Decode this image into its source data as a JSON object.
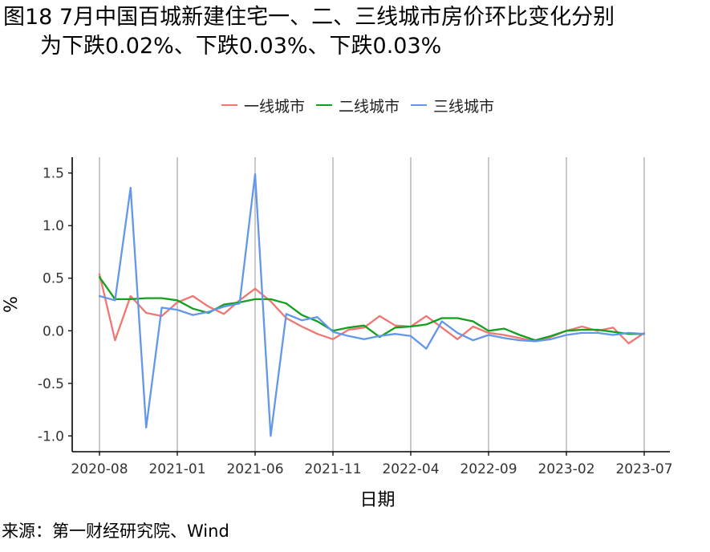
{
  "title": {
    "line1": "图18 7月中国百城新建住宅一、二、三线城市房价环比变化分别",
    "line2": "为下跌0.02%、下跌0.03%、下跌0.03%"
  },
  "source": "来源：第一财经研究院、Wind",
  "chart_data": {
    "type": "line",
    "xlabel": "日期",
    "ylabel": "%",
    "ylim": [
      -1.15,
      1.65
    ],
    "yticks": [
      1.5,
      1.0,
      0.5,
      0.0,
      -0.5,
      -1.0
    ],
    "ytick_labels": [
      "1.5",
      "1.0",
      "0.5",
      "0.0",
      "-0.5",
      "-1.0"
    ],
    "x": [
      "2020-08",
      "2020-09",
      "2020-10",
      "2020-11",
      "2020-12",
      "2021-01",
      "2021-02",
      "2021-03",
      "2021-04",
      "2021-05",
      "2021-06",
      "2021-07",
      "2021-08",
      "2021-09",
      "2021-10",
      "2021-11",
      "2021-12",
      "2022-01",
      "2022-02",
      "2022-03",
      "2022-04",
      "2022-05",
      "2022-06",
      "2022-07",
      "2022-08",
      "2022-09",
      "2022-10",
      "2022-11",
      "2022-12",
      "2023-01",
      "2023-02",
      "2023-03",
      "2023-04",
      "2023-05",
      "2023-06",
      "2023-07"
    ],
    "xtick_labels": [
      "2020-08",
      "2021-01",
      "2021-06",
      "2021-11",
      "2022-04",
      "2022-09",
      "2023-02",
      "2023-07"
    ],
    "xtick_index": [
      0,
      5,
      10,
      15,
      20,
      25,
      30,
      35
    ],
    "grid": "vertical",
    "legend_position": "top",
    "series": [
      {
        "name": "一线城市",
        "color": "#f07771",
        "values": [
          0.54,
          -0.09,
          0.33,
          0.17,
          0.14,
          0.27,
          0.33,
          0.23,
          0.16,
          0.29,
          0.4,
          0.28,
          0.12,
          0.04,
          -0.03,
          -0.08,
          0.01,
          0.03,
          0.14,
          0.05,
          0.04,
          0.14,
          0.03,
          -0.08,
          0.04,
          -0.02,
          -0.04,
          -0.07,
          -0.1,
          -0.06,
          0.0,
          0.04,
          0.0,
          0.03,
          -0.12,
          -0.02
        ]
      },
      {
        "name": "二线城市",
        "color": "#14a01f",
        "values": [
          0.51,
          0.3,
          0.3,
          0.31,
          0.31,
          0.29,
          0.21,
          0.17,
          0.25,
          0.27,
          0.3,
          0.3,
          0.26,
          0.15,
          0.09,
          0.0,
          0.03,
          0.05,
          -0.06,
          0.03,
          0.04,
          0.06,
          0.12,
          0.12,
          0.09,
          0.0,
          0.02,
          -0.04,
          -0.09,
          -0.05,
          0.0,
          0.01,
          0.01,
          -0.01,
          -0.03,
          -0.03
        ]
      },
      {
        "name": "三线城市",
        "color": "#6297eb",
        "values": [
          0.33,
          0.29,
          1.36,
          -0.92,
          0.22,
          0.2,
          0.15,
          0.18,
          0.23,
          0.26,
          1.49,
          -1.0,
          0.16,
          0.1,
          0.13,
          -0.01,
          -0.05,
          -0.08,
          -0.05,
          -0.03,
          -0.05,
          -0.17,
          0.09,
          -0.02,
          -0.09,
          -0.04,
          -0.07,
          -0.09,
          -0.1,
          -0.08,
          -0.04,
          -0.02,
          -0.02,
          -0.04,
          -0.02,
          -0.03
        ]
      }
    ]
  }
}
